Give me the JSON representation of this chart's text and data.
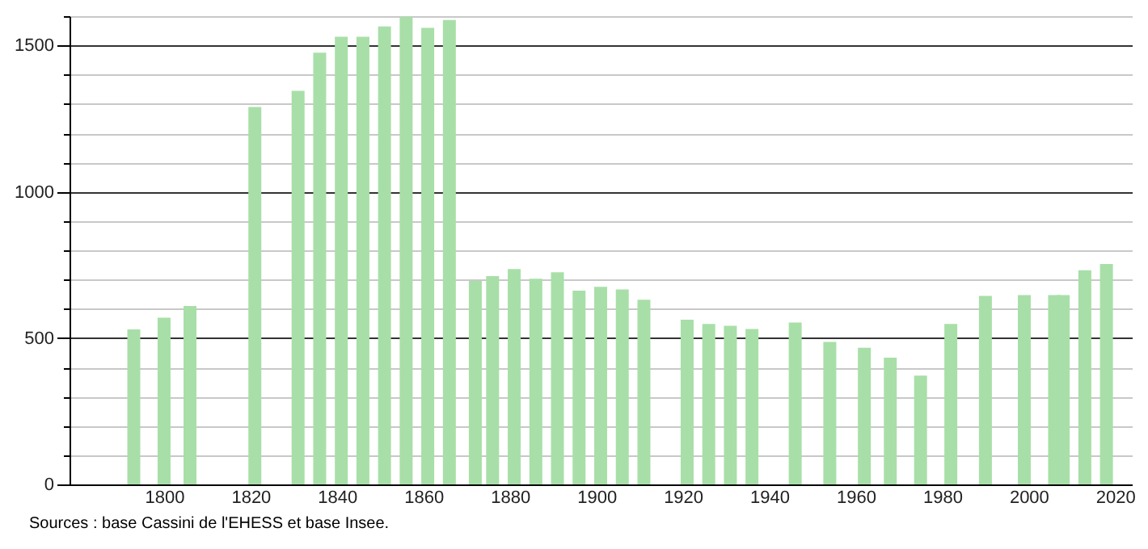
{
  "chart_data": {
    "type": "bar",
    "x": [
      1793,
      1800,
      1806,
      1821,
      1831,
      1836,
      1841,
      1846,
      1851,
      1856,
      1861,
      1866,
      1872,
      1876,
      1881,
      1886,
      1891,
      1896,
      1901,
      1906,
      1911,
      1921,
      1926,
      1931,
      1936,
      1946,
      1954,
      1962,
      1968,
      1975,
      1982,
      1990,
      1999,
      2006,
      2008,
      2013,
      2018
    ],
    "values": [
      530,
      570,
      610,
      1290,
      1345,
      1475,
      1530,
      1530,
      1565,
      1598,
      1560,
      1587,
      695,
      712,
      736,
      703,
      725,
      662,
      675,
      666,
      631,
      563,
      548,
      542,
      531,
      553,
      487,
      467,
      433,
      372,
      548,
      644,
      647,
      647,
      647,
      732,
      753
    ],
    "color": "#a8dfa8",
    "xlim": [
      1780,
      2022
    ],
    "xticks": [
      1800,
      1820,
      1840,
      1860,
      1880,
      1900,
      1920,
      1940,
      1960,
      1980,
      2000,
      2020
    ],
    "ylim": [
      0,
      1600
    ],
    "yticks": [
      0,
      {
        "value": 100,
        "label": null
      },
      {
        "value": 200,
        "label": null
      },
      {
        "value": 300,
        "label": null
      },
      {
        "value": 400,
        "label": null
      },
      500,
      {
        "value": 600,
        "label": null
      },
      {
        "value": 700,
        "label": null
      },
      {
        "value": 800,
        "label": null
      },
      {
        "value": 900,
        "label": null
      },
      1000,
      {
        "value": 1100,
        "label": null
      },
      {
        "value": 1200,
        "label": null
      },
      {
        "value": 1300,
        "label": null
      },
      {
        "value": 1400,
        "label": null
      },
      1500,
      {
        "value": 1600,
        "label": null
      }
    ],
    "grid": "y",
    "annotations": [
      "Sources : base Cassini de l'EHESS et base Insee."
    ]
  }
}
